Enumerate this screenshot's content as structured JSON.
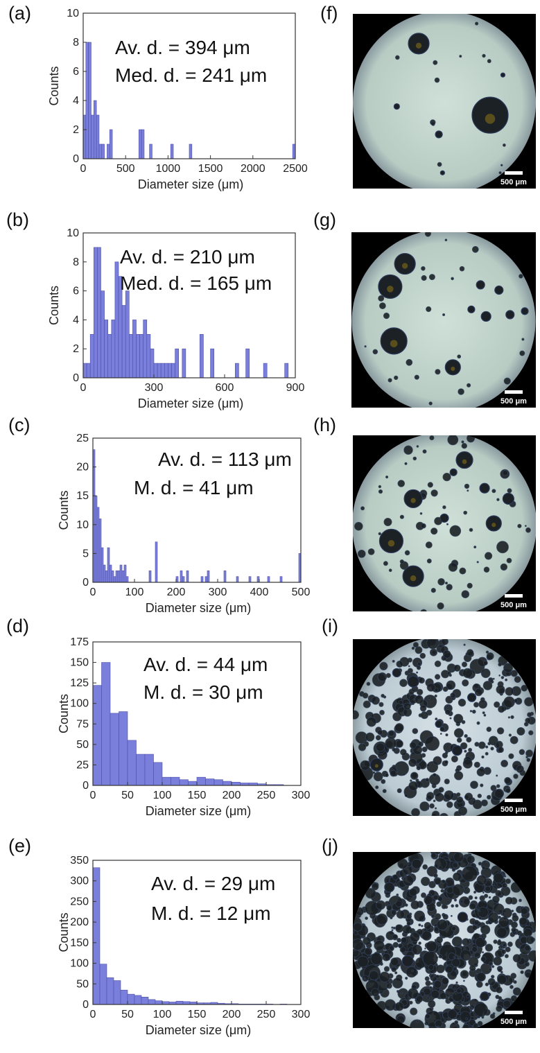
{
  "chart_data": [
    {
      "type": "bar",
      "panel_label": "(a)",
      "bin_start": 0,
      "bin_width": 31.25,
      "counts": [
        3,
        8,
        8,
        3,
        4,
        3,
        1,
        1,
        0,
        1,
        2,
        0,
        0,
        0,
        0,
        0,
        0,
        0,
        0,
        0,
        0,
        2,
        2,
        0,
        0,
        1,
        0,
        0,
        0,
        0,
        0,
        0,
        0,
        1,
        0,
        0,
        0,
        0,
        0,
        0,
        1,
        0,
        0,
        0,
        0,
        0,
        0,
        0,
        0,
        0,
        0,
        0,
        0,
        0,
        0,
        0,
        0,
        0,
        0,
        0,
        0,
        0,
        0,
        0,
        0,
        0,
        0,
        0,
        0,
        0,
        0,
        0,
        0,
        0,
        0,
        0,
        0,
        0,
        0,
        1
      ],
      "xlim": [
        0,
        2500
      ],
      "ylim": [
        0,
        10
      ],
      "xticks": [
        0,
        500,
        1000,
        1500,
        2000,
        2500
      ],
      "yticks": [
        0,
        2,
        4,
        6,
        8,
        10
      ],
      "xlabel": "Diameter size (μm)",
      "ylabel": "Counts",
      "annotations": [
        "Av. d. = 394 μm",
        "Med. d. = 241 μm"
      ]
    },
    {
      "type": "bar",
      "panel_label": "(b)",
      "bin_start": 0,
      "bin_width": 15,
      "counts": [
        1,
        1,
        3,
        9,
        9,
        6,
        4,
        3,
        4,
        8,
        7,
        5,
        6,
        3,
        4,
        3,
        3,
        4,
        3,
        2,
        1,
        1,
        1,
        1,
        1,
        1,
        2,
        0,
        2,
        0,
        0,
        0,
        0,
        3,
        0,
        0,
        2,
        0,
        0,
        0,
        0,
        0,
        0,
        1,
        0,
        0,
        2,
        0,
        0,
        0,
        0,
        1,
        0,
        0,
        0,
        0,
        0,
        1,
        0,
        0
      ],
      "xlim": [
        0,
        900
      ],
      "ylim": [
        0,
        10
      ],
      "xticks": [
        0,
        300,
        600,
        900
      ],
      "yticks": [
        0,
        2,
        4,
        6,
        8,
        10
      ],
      "xlabel": "Diameter size (μm)",
      "ylabel": "Counts",
      "annotations": [
        "Av. d. = 210 μm",
        "Med. d. = 165 μm"
      ]
    },
    {
      "type": "bar",
      "panel_label": "(c)",
      "bin_start": 0,
      "bin_width": 5,
      "counts": [
        23,
        15,
        13,
        11,
        6,
        3,
        2,
        6,
        3,
        2,
        1,
        2,
        2,
        3,
        2,
        3,
        1,
        0,
        0,
        0,
        0,
        0,
        0,
        0,
        0,
        0,
        0,
        2,
        0,
        0,
        7,
        0,
        0,
        0,
        0,
        0,
        0,
        0,
        0,
        0,
        1,
        0,
        2,
        1,
        0,
        2,
        0,
        0,
        0,
        0,
        0,
        0,
        1,
        0,
        1,
        2,
        0,
        0,
        0,
        0,
        0,
        0,
        0,
        2,
        0,
        0,
        0,
        0,
        0,
        1,
        0,
        0,
        0,
        0,
        0,
        1,
        0,
        0,
        0,
        1,
        0,
        0,
        0,
        0,
        1,
        0,
        0,
        0,
        0,
        0,
        1,
        0,
        0,
        0,
        0,
        0,
        0,
        0,
        0,
        5
      ],
      "xlim": [
        0,
        500
      ],
      "ylim": [
        0,
        25
      ],
      "xticks": [
        0,
        100,
        200,
        300,
        400,
        500
      ],
      "yticks": [
        0,
        5,
        10,
        15,
        20,
        25
      ],
      "xlabel": "Diameter size (μm)",
      "ylabel": "Counts",
      "annotations": [
        "Av. d. = 113 μm",
        "M. d. = 41 μm"
      ]
    },
    {
      "type": "bar",
      "panel_label": "(d)",
      "bin_start": 0,
      "bin_width": 12.5,
      "counts": [
        122,
        150,
        88,
        90,
        55,
        38,
        38,
        28,
        10,
        10,
        7,
        5,
        10,
        8,
        7,
        5,
        4,
        3,
        3,
        2,
        1,
        1,
        0
      ],
      "xlim": [
        0,
        300
      ],
      "ylim": [
        0,
        175
      ],
      "xticks": [
        0,
        50,
        100,
        150,
        200,
        250,
        300
      ],
      "yticks": [
        0,
        25,
        50,
        75,
        100,
        125,
        150,
        175
      ],
      "xlabel": "Diameter size (μm)",
      "ylabel": "Counts",
      "annotations": [
        "Av. d. = 44 μm",
        "M. d. = 30 μm"
      ]
    },
    {
      "type": "bar",
      "panel_label": "(e)",
      "bin_start": 0,
      "bin_width": 10,
      "counts": [
        332,
        98,
        65,
        58,
        35,
        25,
        22,
        18,
        12,
        9,
        7,
        6,
        8,
        7,
        6,
        4,
        4,
        5,
        3,
        2,
        2,
        1,
        1,
        1,
        1,
        1,
        0,
        1
      ],
      "xlim": [
        0,
        300
      ],
      "ylim": [
        0,
        350
      ],
      "xticks": [
        0,
        50,
        100,
        150,
        200,
        250,
        300
      ],
      "yticks": [
        0,
        50,
        100,
        150,
        200,
        250,
        300,
        350
      ],
      "xlabel": "Diameter size (μm)",
      "ylabel": "Counts",
      "annotations": [
        "Av. d. = 29 μm",
        "M. d. = 12 μm"
      ]
    }
  ],
  "micrographs": [
    {
      "panel_label": "(f)",
      "scale_bar": "500 μm",
      "density": "sparse"
    },
    {
      "panel_label": "(g)",
      "scale_bar": "500 μm",
      "density": "low"
    },
    {
      "panel_label": "(h)",
      "scale_bar": "500 μm",
      "density": "medium"
    },
    {
      "panel_label": "(i)",
      "scale_bar": "500 μm",
      "density": "high"
    },
    {
      "panel_label": "(j)",
      "scale_bar": "500 μm",
      "density": "very-high"
    }
  ],
  "colors": {
    "bar_fill": "#7b7fdc",
    "bar_edge": "#4c4fa8",
    "axis": "#333333",
    "field": "#c9dcd2",
    "bubble": "#1b2124",
    "background_dark": "#000000"
  }
}
